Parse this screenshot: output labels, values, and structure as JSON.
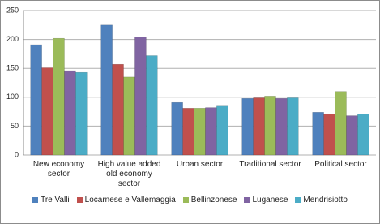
{
  "chart_data": {
    "type": "bar",
    "categories": [
      "New economy sector",
      "High value added old economy sector",
      "Urban sector",
      "Traditional sector",
      "Political sector"
    ],
    "series": [
      {
        "name": "Tre Valli",
        "color": "#4f81bd",
        "values": [
          191,
          225,
          91,
          98,
          74
        ]
      },
      {
        "name": "Locarnese e Vallemaggia",
        "color": "#c0504d",
        "values": [
          151,
          157,
          81,
          99,
          71
        ]
      },
      {
        "name": "Bellinzonese",
        "color": "#9bbb59",
        "values": [
          202,
          135,
          81,
          102,
          110
        ]
      },
      {
        "name": "Luganese",
        "color": "#8064a2",
        "values": [
          146,
          204,
          82,
          98,
          68
        ]
      },
      {
        "name": "Mendrisiotto",
        "color": "#4bacc6",
        "values": [
          143,
          172,
          86,
          99,
          71
        ]
      }
    ],
    "ylim": [
      0,
      250
    ],
    "yticks": [
      0,
      50,
      100,
      150,
      200,
      250
    ],
    "grid": true
  }
}
